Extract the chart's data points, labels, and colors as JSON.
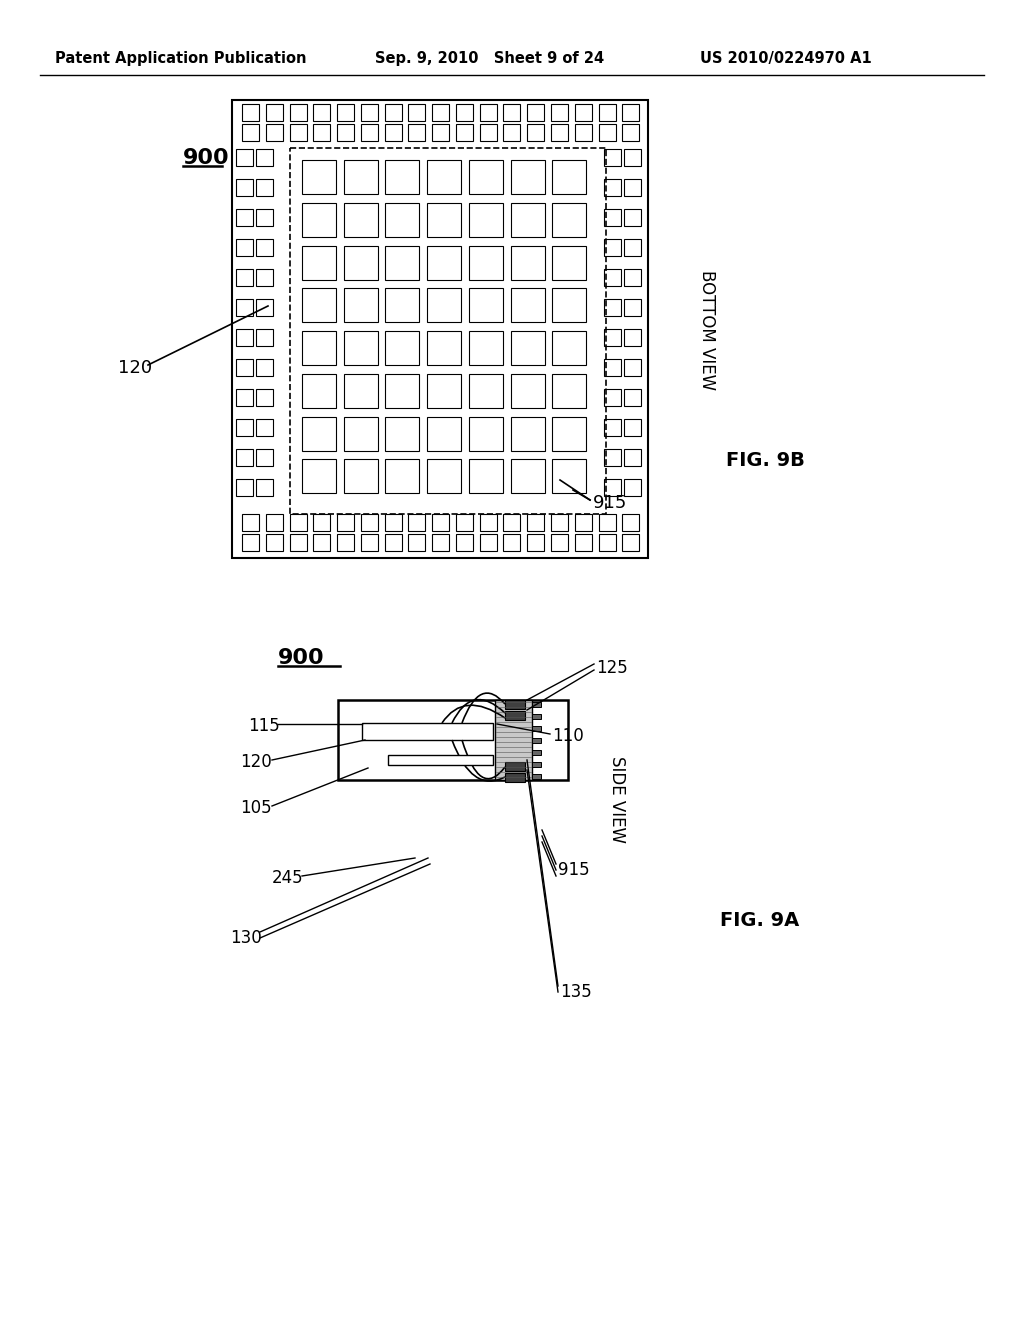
{
  "header_left": "Patent Application Publication",
  "header_mid": "Sep. 9, 2010   Sheet 9 of 24",
  "header_right": "US 2010/0224970 A1",
  "bg_color": "#ffffff",
  "lc": "#000000",
  "fig9b_label": "FIG. 9B",
  "fig9a_label": "FIG. 9A",
  "bottom_view_label": "BOTTOM VIEW",
  "side_view_label": "SIDE VIEW"
}
